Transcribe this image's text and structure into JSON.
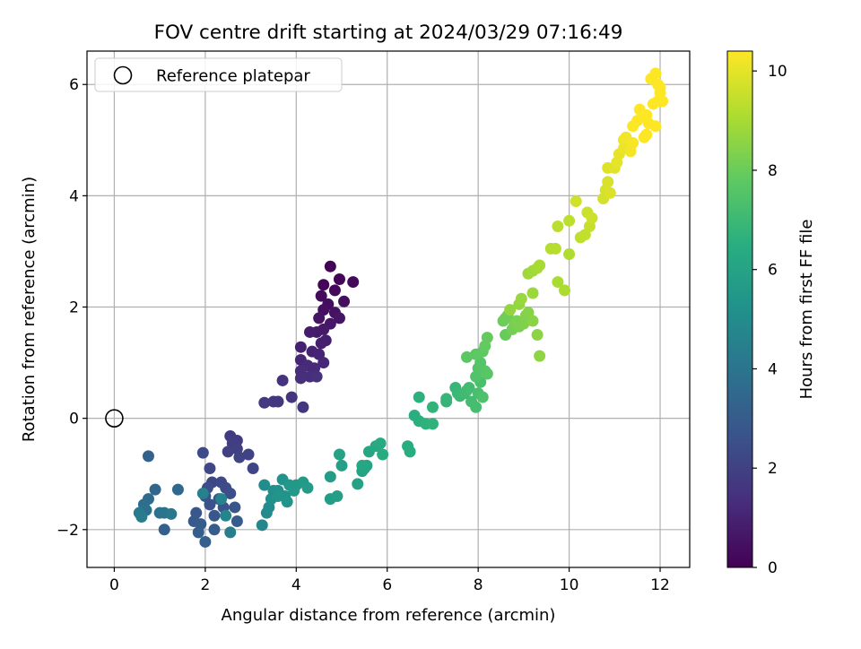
{
  "chart_data": {
    "type": "scatter",
    "title": "FOV centre drift starting at 2024/03/29 07:16:49",
    "xlabel": "Angular distance from reference (arcmin)",
    "ylabel": "Rotation from reference (arcmin)",
    "xlim": [
      -0.6,
      12.65
    ],
    "ylim": [
      -2.68,
      6.6
    ],
    "xticks": [
      0,
      2,
      4,
      6,
      8,
      10,
      12
    ],
    "yticks": [
      -2,
      0,
      2,
      4,
      6
    ],
    "xtick_labels": [
      "0",
      "2",
      "4",
      "6",
      "8",
      "10",
      "12"
    ],
    "ytick_labels": [
      "−2",
      "0",
      "2",
      "4",
      "6"
    ],
    "grid": true,
    "legend": {
      "location": "upper-left",
      "entries": [
        {
          "label": "Reference platepar",
          "marker": "open-circle"
        }
      ]
    },
    "reference_point": {
      "x": 0,
      "y": 0
    },
    "colorbar": {
      "label": "Hours from first FF file",
      "range": [
        0,
        10.4
      ],
      "ticks": [
        0,
        2,
        4,
        6,
        8,
        10
      ],
      "tick_labels": [
        "0",
        "2",
        "4",
        "6",
        "8",
        "10"
      ],
      "colormap": "viridis"
    },
    "points": [
      [
        4.75,
        2.73,
        0.05
      ],
      [
        4.95,
        2.5,
        0.1
      ],
      [
        4.6,
        2.4,
        0.15
      ],
      [
        4.85,
        2.3,
        0.2
      ],
      [
        5.25,
        2.45,
        0.25
      ],
      [
        4.55,
        2.2,
        0.3
      ],
      [
        4.7,
        2.05,
        0.35
      ],
      [
        5.05,
        2.1,
        0.4
      ],
      [
        4.6,
        1.95,
        0.45
      ],
      [
        4.85,
        1.9,
        0.5
      ],
      [
        4.5,
        1.8,
        0.55
      ],
      [
        4.95,
        1.8,
        0.6
      ],
      [
        4.75,
        1.7,
        0.65
      ],
      [
        4.6,
        1.6,
        0.7
      ],
      [
        4.45,
        1.55,
        0.75
      ],
      [
        4.3,
        1.55,
        0.8
      ],
      [
        4.65,
        1.4,
        0.85
      ],
      [
        4.55,
        1.35,
        0.9
      ],
      [
        4.1,
        1.28,
        0.95
      ],
      [
        4.35,
        1.2,
        1.0
      ],
      [
        4.5,
        1.15,
        1.05
      ],
      [
        4.1,
        1.05,
        1.1
      ],
      [
        4.6,
        1.0,
        1.15
      ],
      [
        4.25,
        0.95,
        1.2
      ],
      [
        4.4,
        0.9,
        1.25
      ],
      [
        4.1,
        0.85,
        1.3
      ],
      [
        4.3,
        0.75,
        1.35
      ],
      [
        4.1,
        0.72,
        1.4
      ],
      [
        4.45,
        0.75,
        1.45
      ],
      [
        3.7,
        0.68,
        1.5
      ],
      [
        3.9,
        0.38,
        1.55
      ],
      [
        3.6,
        0.3,
        1.6
      ],
      [
        3.5,
        0.3,
        1.65
      ],
      [
        4.15,
        0.2,
        1.7
      ],
      [
        3.3,
        0.28,
        1.75
      ],
      [
        2.55,
        -0.32,
        1.8
      ],
      [
        2.7,
        -0.4,
        1.85
      ],
      [
        2.6,
        -0.45,
        1.9
      ],
      [
        2.7,
        -0.55,
        1.95
      ],
      [
        2.5,
        -0.6,
        2.0
      ],
      [
        2.95,
        -0.65,
        2.05
      ],
      [
        2.75,
        -0.7,
        2.1
      ],
      [
        3.05,
        -0.9,
        2.15
      ],
      [
        2.1,
        -0.9,
        2.2
      ],
      [
        2.15,
        -1.15,
        2.25
      ],
      [
        2.35,
        -1.15,
        2.3
      ],
      [
        1.95,
        -0.62,
        2.35
      ],
      [
        2.45,
        -1.25,
        2.4
      ],
      [
        2.05,
        -1.25,
        2.45
      ],
      [
        2.55,
        -1.35,
        2.5
      ],
      [
        2.0,
        -1.4,
        2.55
      ],
      [
        2.3,
        -1.45,
        2.6
      ],
      [
        2.1,
        -1.55,
        2.65
      ],
      [
        2.4,
        -1.6,
        2.7
      ],
      [
        2.65,
        -1.6,
        2.75
      ],
      [
        1.8,
        -1.7,
        2.8
      ],
      [
        2.2,
        -1.75,
        2.85
      ],
      [
        1.75,
        -1.85,
        2.9
      ],
      [
        2.7,
        -1.85,
        2.95
      ],
      [
        1.9,
        -1.9,
        3.0
      ],
      [
        2.2,
        -2.0,
        3.05
      ],
      [
        1.85,
        -2.05,
        3.1
      ],
      [
        2.0,
        -2.22,
        3.15
      ],
      [
        1.1,
        -2.0,
        3.2
      ],
      [
        0.75,
        -0.68,
        3.3
      ],
      [
        0.9,
        -1.28,
        3.4
      ],
      [
        1.4,
        -1.28,
        3.5
      ],
      [
        0.75,
        -1.45,
        3.6
      ],
      [
        0.65,
        -1.55,
        3.7
      ],
      [
        0.7,
        -1.65,
        3.8
      ],
      [
        1.0,
        -1.7,
        3.9
      ],
      [
        1.1,
        -1.7,
        4.0
      ],
      [
        1.25,
        -1.72,
        4.1
      ],
      [
        0.55,
        -1.7,
        4.2
      ],
      [
        0.6,
        -1.77,
        4.3
      ],
      [
        2.55,
        -2.05,
        4.4
      ],
      [
        1.95,
        -1.35,
        4.5
      ],
      [
        2.35,
        -1.45,
        4.6
      ],
      [
        2.45,
        -1.75,
        4.7
      ],
      [
        3.25,
        -1.92,
        4.8
      ],
      [
        3.35,
        -1.7,
        4.9
      ],
      [
        3.4,
        -1.6,
        5.0
      ],
      [
        3.3,
        -1.2,
        5.05
      ],
      [
        3.5,
        -1.3,
        5.1
      ],
      [
        3.45,
        -1.45,
        5.15
      ],
      [
        3.6,
        -1.3,
        5.2
      ],
      [
        3.7,
        -1.1,
        5.25
      ],
      [
        3.75,
        -1.4,
        5.3
      ],
      [
        3.6,
        -1.4,
        5.35
      ],
      [
        3.8,
        -1.5,
        5.4
      ],
      [
        3.85,
        -1.2,
        5.45
      ],
      [
        4.0,
        -1.2,
        5.5
      ],
      [
        3.95,
        -1.3,
        5.55
      ],
      [
        4.15,
        -1.15,
        5.6
      ],
      [
        4.25,
        -1.25,
        5.65
      ],
      [
        4.75,
        -1.05,
        5.7
      ],
      [
        4.75,
        -1.45,
        5.75
      ],
      [
        4.9,
        -1.4,
        5.8
      ],
      [
        5.0,
        -0.85,
        5.85
      ],
      [
        4.95,
        -0.65,
        5.9
      ],
      [
        5.35,
        -1.18,
        5.95
      ],
      [
        5.45,
        -0.95,
        6.0
      ],
      [
        5.5,
        -0.9,
        6.05
      ],
      [
        5.55,
        -0.85,
        6.1
      ],
      [
        5.45,
        -0.85,
        6.15
      ],
      [
        5.6,
        -0.6,
        6.2
      ],
      [
        5.75,
        -0.5,
        6.25
      ],
      [
        5.85,
        -0.45,
        6.3
      ],
      [
        5.9,
        -0.65,
        6.35
      ],
      [
        6.45,
        -0.5,
        6.4
      ],
      [
        6.5,
        -0.6,
        6.45
      ],
      [
        6.6,
        0.05,
        6.5
      ],
      [
        6.7,
        -0.05,
        6.55
      ],
      [
        6.7,
        0.38,
        6.6
      ],
      [
        6.85,
        -0.1,
        6.65
      ],
      [
        7.0,
        -0.1,
        6.7
      ],
      [
        7.0,
        0.2,
        6.75
      ],
      [
        7.3,
        0.3,
        6.8
      ],
      [
        7.3,
        0.35,
        6.85
      ],
      [
        7.5,
        0.55,
        6.9
      ],
      [
        7.55,
        0.45,
        6.95
      ],
      [
        7.6,
        0.4,
        7.0
      ],
      [
        7.7,
        0.45,
        7.05
      ],
      [
        7.75,
        0.5,
        7.1
      ],
      [
        7.8,
        0.55,
        7.15
      ],
      [
        7.85,
        0.3,
        7.2
      ],
      [
        7.95,
        0.2,
        7.25
      ],
      [
        8.0,
        0.45,
        7.3
      ],
      [
        8.05,
        0.65,
        7.35
      ],
      [
        8.1,
        0.38,
        7.4
      ],
      [
        7.95,
        0.75,
        7.45
      ],
      [
        8.0,
        0.9,
        7.5
      ],
      [
        8.05,
        1.0,
        7.55
      ],
      [
        8.15,
        0.85,
        7.6
      ],
      [
        8.2,
        0.8,
        7.65
      ],
      [
        7.75,
        1.1,
        7.7
      ],
      [
        7.95,
        1.15,
        7.75
      ],
      [
        8.1,
        1.2,
        7.8
      ],
      [
        8.15,
        1.3,
        7.85
      ],
      [
        8.2,
        1.45,
        7.9
      ],
      [
        8.6,
        1.5,
        7.95
      ],
      [
        8.55,
        1.75,
        8.0
      ],
      [
        8.6,
        1.8,
        8.05
      ],
      [
        8.65,
        1.85,
        8.1
      ],
      [
        8.75,
        1.6,
        8.15
      ],
      [
        8.8,
        1.7,
        8.2
      ],
      [
        8.85,
        1.75,
        8.25
      ],
      [
        8.9,
        1.65,
        8.3
      ],
      [
        9.0,
        1.7,
        8.35
      ],
      [
        9.05,
        1.85,
        8.4
      ],
      [
        9.1,
        1.9,
        8.45
      ],
      [
        9.2,
        1.75,
        8.5
      ],
      [
        9.3,
        1.5,
        8.55
      ],
      [
        9.35,
        1.12,
        8.6
      ],
      [
        8.7,
        1.95,
        8.65
      ],
      [
        8.9,
        2.05,
        8.7
      ],
      [
        8.95,
        2.15,
        8.75
      ],
      [
        9.2,
        2.25,
        8.8
      ],
      [
        9.1,
        2.6,
        8.85
      ],
      [
        9.2,
        2.65,
        8.9
      ],
      [
        9.3,
        2.7,
        8.95
      ],
      [
        9.35,
        2.75,
        9.0
      ],
      [
        9.75,
        2.45,
        9.05
      ],
      [
        9.9,
        2.3,
        9.1
      ],
      [
        10.0,
        2.95,
        9.15
      ],
      [
        9.6,
        3.05,
        9.2
      ],
      [
        9.7,
        3.05,
        9.25
      ],
      [
        9.75,
        3.45,
        9.3
      ],
      [
        10.0,
        3.55,
        9.35
      ],
      [
        10.25,
        3.25,
        9.4
      ],
      [
        10.35,
        3.3,
        9.45
      ],
      [
        10.45,
        3.45,
        9.5
      ],
      [
        10.4,
        3.7,
        9.55
      ],
      [
        10.5,
        3.6,
        9.6
      ],
      [
        10.15,
        3.9,
        9.65
      ],
      [
        10.75,
        3.95,
        9.7
      ],
      [
        10.8,
        4.1,
        9.75
      ],
      [
        10.85,
        4.25,
        9.8
      ],
      [
        10.9,
        4.05,
        9.85
      ],
      [
        10.85,
        4.5,
        9.9
      ],
      [
        11.0,
        4.5,
        9.95
      ],
      [
        11.05,
        4.6,
        10.0
      ],
      [
        11.1,
        4.75,
        10.05
      ],
      [
        11.2,
        4.85,
        10.1
      ],
      [
        11.2,
        5.0,
        10.15
      ],
      [
        11.25,
        5.05,
        10.2
      ],
      [
        11.35,
        4.8,
        10.25
      ],
      [
        11.4,
        4.95,
        10.3
      ],
      [
        11.4,
        5.25,
        10.35
      ],
      [
        11.5,
        5.35,
        10.4
      ],
      [
        11.55,
        5.55,
        10.4
      ],
      [
        11.65,
        5.45,
        10.4
      ],
      [
        11.7,
        5.1,
        10.4
      ],
      [
        11.75,
        5.3,
        10.4
      ],
      [
        11.85,
        5.65,
        10.4
      ],
      [
        11.9,
        5.25,
        10.4
      ],
      [
        11.95,
        5.7,
        10.4
      ],
      [
        12.0,
        5.85,
        10.4
      ],
      [
        12.0,
        5.95,
        10.4
      ],
      [
        11.8,
        6.1,
        10.4
      ],
      [
        11.9,
        6.2,
        10.4
      ],
      [
        11.95,
        6.0,
        10.4
      ],
      [
        12.05,
        5.7,
        10.4
      ],
      [
        11.7,
        5.45,
        10.4
      ],
      [
        11.65,
        5.05,
        10.4
      ]
    ]
  }
}
